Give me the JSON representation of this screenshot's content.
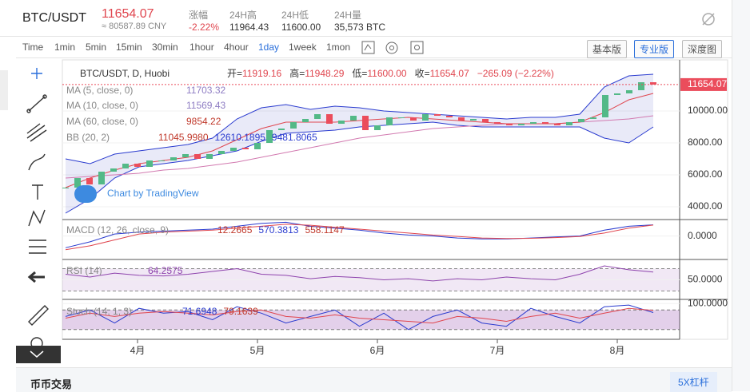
{
  "header": {
    "pair": "BTC/USDT",
    "price": "11654.07",
    "cny": "≈ 80587.89 CNY",
    "stats": [
      {
        "label": "涨幅",
        "value": "-2.22%"
      },
      {
        "label": "24H高",
        "value": "11964.43"
      },
      {
        "label": "24H低",
        "value": "11600.00"
      },
      {
        "label": "24H量",
        "value": "35,573 BTC"
      }
    ]
  },
  "toolbar": {
    "intervals": [
      "Time",
      "1min",
      "5min",
      "15min",
      "30min",
      "1hour",
      "4hour",
      "1day",
      "1week",
      "1mon"
    ],
    "active": "1day",
    "views": [
      "基本版",
      "专业版",
      "深度图"
    ],
    "active_view": "专业版"
  },
  "legend": {
    "symbol": "BTC/USDT, D, Huobi",
    "ohlc": [
      {
        "label": "开=",
        "value": "11919.16"
      },
      {
        "label": "高=",
        "value": "11948.29"
      },
      {
        "label": "低=",
        "value": "11600.00"
      },
      {
        "label": "收=",
        "value": "11654.07"
      },
      {
        "label": "",
        "value": "−265.09 (−2.22%)"
      }
    ],
    "studies": [
      {
        "name": "MA (5, close, 0)",
        "values": [
          "11703.32"
        ],
        "colors": [
          "#8e7cc3"
        ]
      },
      {
        "name": "MA (10, close, 0)",
        "values": [
          "11569.43"
        ],
        "colors": [
          "#8e7cc3"
        ]
      },
      {
        "name": "MA (60, close, 0)",
        "values": [
          "9854.22"
        ],
        "colors": [
          "#c0392b"
        ]
      },
      {
        "name": "BB (20, 2)",
        "values": [
          "11045.9980",
          "12610.1895",
          "9481.8065"
        ],
        "colors": [
          "#c0392b",
          "#2a3bcf",
          "#2a3bcf"
        ]
      }
    ],
    "macd": {
      "name": "MACD (12, 26, close, 9)",
      "values": [
        "12.2665",
        "570.3813",
        "558.1147"
      ],
      "colors": [
        "#c0392b",
        "#2a3bcf",
        "#c0392b"
      ]
    },
    "rsi": {
      "name": "RSI (14)",
      "values": [
        "64.2575"
      ],
      "colors": [
        "#8e44ad"
      ]
    },
    "stoch": {
      "name": "Stoch (14, 1, 3)",
      "values": [
        "71.6948",
        "79.1639"
      ],
      "colors": [
        "#2a3bcf",
        "#c0392b"
      ]
    }
  },
  "watermark": "Chart by TradingView",
  "chart": {
    "price": {
      "ylim": [
        3200,
        13200
      ],
      "yticks": [
        {
          "value": 4000,
          "label": "4000.00"
        },
        {
          "value": 6000,
          "label": "6000.00"
        },
        {
          "value": 8000,
          "label": "8000.00"
        },
        {
          "value": 10000,
          "label": "10000.00"
        }
      ],
      "last": {
        "value": 11654.07,
        "label": "11654.07"
      },
      "closes": [
        5200,
        5800,
        5400,
        6200,
        6400,
        6700,
        6500,
        6900,
        6900,
        7100,
        7300,
        7000,
        7300,
        7500,
        7700,
        7600,
        8000,
        8800,
        8900,
        9300,
        9500,
        9800,
        9200,
        9400,
        9700,
        8800,
        9100,
        9600,
        9600,
        9400,
        9800,
        9700,
        9600,
        9400,
        9500,
        9300,
        9200,
        9100,
        9200,
        9300,
        9200,
        9100,
        9300,
        9500,
        9600,
        11000,
        11100,
        11300,
        11800,
        11654.07
      ],
      "bb_upper": [
        7000,
        6700,
        7300,
        7500,
        7700,
        7900,
        8300,
        9500,
        10200,
        10400,
        10100,
        10300,
        10200,
        10000,
        9900,
        9800,
        9700,
        9600,
        9500,
        9600,
        9600,
        9800,
        11500,
        12200,
        12300
      ],
      "bb_lower": [
        3600,
        4500,
        5800,
        6500,
        6700,
        6900,
        7200,
        7500,
        8100,
        8600,
        8700,
        8800,
        9000,
        9100,
        9200,
        9300,
        9100,
        9000,
        9000,
        9000,
        9000,
        9000,
        8300,
        8000,
        9000
      ],
      "ma10": [
        5200,
        5800,
        6300,
        6700,
        6900,
        7100,
        7500,
        8200,
        8900,
        9300,
        9300,
        9300,
        9400,
        9500,
        9600,
        9500,
        9400,
        9300,
        9200,
        9200,
        9200,
        9300,
        9900,
        10700,
        11100
      ],
      "ma60": [
        5800,
        5900,
        6000,
        6100,
        6300,
        6400,
        6600,
        6800,
        7100,
        7400,
        7700,
        8000,
        8300,
        8500,
        8700,
        8900,
        9000,
        9100,
        9200,
        9200,
        9200,
        9300,
        9400,
        9500,
        9700
      ]
    },
    "macd": {
      "ylim": [
        -1200,
        800
      ],
      "yticks": [
        {
          "value": 0,
          "label": "0.0000"
        }
      ],
      "macd": [
        -600,
        -300,
        100,
        200,
        250,
        300,
        350,
        500,
        650,
        700,
        500,
        400,
        300,
        150,
        50,
        0,
        -100,
        -150,
        -150,
        -100,
        -50,
        0,
        300,
        500,
        570
      ],
      "signal": [
        -700,
        -500,
        -200,
        100,
        200,
        250,
        300,
        400,
        500,
        600,
        550,
        450,
        350,
        250,
        150,
        50,
        -20,
        -100,
        -130,
        -120,
        -80,
        -30,
        150,
        400,
        558
      ]
    },
    "rsi": {
      "ylim": [
        15,
        85
      ],
      "yticks": [
        {
          "value": 50,
          "label": "50.0000"
        }
      ],
      "bands": [
        30,
        70
      ],
      "values": [
        60,
        55,
        62,
        58,
        57,
        60,
        65,
        70,
        60,
        58,
        52,
        56,
        54,
        50,
        52,
        48,
        52,
        50,
        55,
        52,
        50,
        60,
        75,
        68,
        64
      ]
    },
    "stoch": {
      "ylim": [
        -10,
        110
      ],
      "yticks": [
        {
          "value": 100,
          "label": "100.0000"
        }
      ],
      "bands": [
        20,
        80
      ],
      "k": [
        60,
        80,
        40,
        85,
        70,
        75,
        50,
        90,
        70,
        40,
        60,
        80,
        30,
        70,
        20,
        60,
        80,
        40,
        30,
        85,
        60,
        40,
        90,
        95,
        72
      ],
      "d": [
        55,
        70,
        60,
        70,
        75,
        70,
        65,
        75,
        80,
        60,
        55,
        65,
        55,
        50,
        45,
        40,
        60,
        55,
        45,
        60,
        70,
        55,
        70,
        85,
        79
      ]
    },
    "month_ticks": [
      {
        "label": "4月",
        "index": 6
      },
      {
        "label": "5月",
        "index": 16
      },
      {
        "label": "6月",
        "index": 26
      },
      {
        "label": "7月",
        "index": 36
      },
      {
        "label": "8月",
        "index": 46
      }
    ]
  },
  "footer": {
    "left": "币币交易",
    "right": "5X杠杆"
  }
}
